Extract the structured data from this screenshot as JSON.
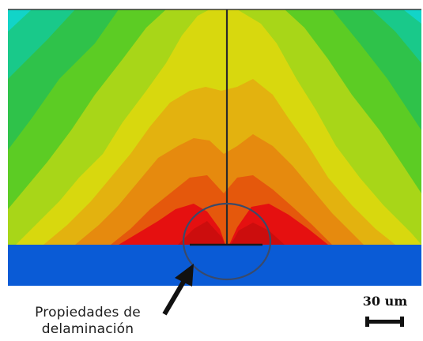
{
  "annotation": {
    "line1": "Propiedades de",
    "line2": "delaminación"
  },
  "scale_bar": {
    "label": "30 um"
  },
  "colors": {
    "substrate": "#0a5bd6",
    "contour_levels": [
      "#12d4c8",
      "#19c98a",
      "#2fc24a",
      "#5ccc24",
      "#a8d618",
      "#d8d80e",
      "#e3b20f",
      "#e68a0e",
      "#e5580c",
      "#e51010"
    ],
    "crack": "#2a2a2a",
    "circle_marker": "#3a4a6a",
    "arrow": "#111111"
  }
}
